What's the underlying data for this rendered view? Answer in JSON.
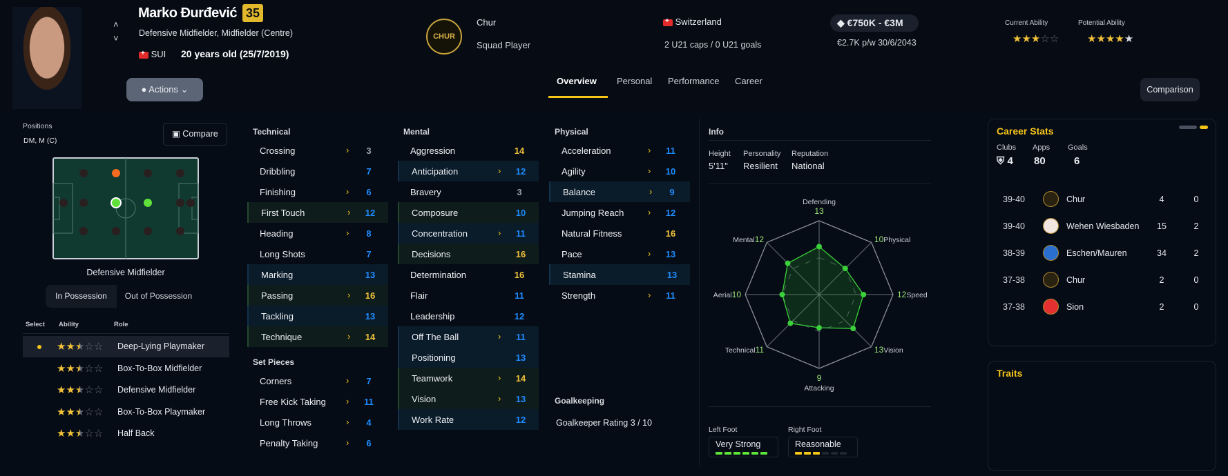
{
  "player": {
    "name": "Marko Đurđević",
    "number": "35",
    "positions_text": "Defensive Midfielder, Midfielder (Centre)",
    "nation_code": "SUI",
    "age_text": "20 years old (25/7/2019)",
    "club": "Chur",
    "club_logo_text": "CHUR",
    "squad_status": "Squad Player",
    "nationality": "Switzerland",
    "caps": "2 U21 caps / 0 U21 goals",
    "value": "€750K - €3M",
    "wage": "€2.7K p/w 30/6/2043",
    "current_ability_label": "Current Ability",
    "potential_ability_label": "Potential Ability",
    "current_ability_stars": 3,
    "potential_ability_stars": 4,
    "potential_ability_range_stars": 5
  },
  "actions_label": "Actions",
  "tabs": [
    "Overview",
    "Personal",
    "Performance",
    "Career"
  ],
  "active_tab": "Overview",
  "comparison_label": "Comparison",
  "positions": {
    "label": "Positions",
    "value": "DM, M (C)",
    "compare_label": "Compare",
    "selected_position": "Defensive Midfielder",
    "possession_tabs": [
      "In Possession",
      "Out of Possession"
    ],
    "headers": [
      "Select",
      "Ability",
      "Role"
    ],
    "roles": [
      {
        "role": "Deep-Lying Playmaker",
        "stars": 2.5,
        "selected": true
      },
      {
        "role": "Box-To-Box Midfielder",
        "stars": 2.5
      },
      {
        "role": "Defensive Midfielder",
        "stars": 2.5
      },
      {
        "role": "Box-To-Box Playmaker",
        "stars": 2.5
      },
      {
        "role": "Half Back",
        "stars": 2.5
      }
    ]
  },
  "attributes": {
    "technical": {
      "title": "Technical",
      "rows": [
        {
          "name": "Crossing",
          "value": 3,
          "arrow": true
        },
        {
          "name": "Dribbling",
          "value": 7
        },
        {
          "name": "Finishing",
          "value": 6,
          "arrow": true
        },
        {
          "name": "First Touch",
          "value": 12,
          "arrow": true,
          "hl": "green"
        },
        {
          "name": "Heading",
          "value": 8,
          "arrow": true
        },
        {
          "name": "Long Shots",
          "value": 7
        },
        {
          "name": "Marking",
          "value": 13,
          "hl": "blue"
        },
        {
          "name": "Passing",
          "value": 16,
          "arrow": true,
          "hl": "green"
        },
        {
          "name": "Tackling",
          "value": 13,
          "hl": "blue"
        },
        {
          "name": "Technique",
          "value": 14,
          "arrow": true,
          "hl": "green"
        }
      ]
    },
    "set_pieces": {
      "title": "Set Pieces",
      "rows": [
        {
          "name": "Corners",
          "value": 7,
          "arrow": true
        },
        {
          "name": "Free Kick Taking",
          "value": 11,
          "arrow": true
        },
        {
          "name": "Long Throws",
          "value": 4,
          "arrow": true
        },
        {
          "name": "Penalty Taking",
          "value": 6,
          "arrow": true
        }
      ]
    },
    "mental": {
      "title": "Mental",
      "rows": [
        {
          "name": "Aggression",
          "value": 14
        },
        {
          "name": "Anticipation",
          "value": 12,
          "arrow": true,
          "hl": "blue"
        },
        {
          "name": "Bravery",
          "value": 3
        },
        {
          "name": "Composure",
          "value": 10,
          "hl": "green"
        },
        {
          "name": "Concentration",
          "value": 11,
          "arrow": true,
          "hl": "blue"
        },
        {
          "name": "Decisions",
          "value": 16,
          "hl": "green"
        },
        {
          "name": "Determination",
          "value": 16
        },
        {
          "name": "Flair",
          "value": 11
        },
        {
          "name": "Leadership",
          "value": 12
        },
        {
          "name": "Off The Ball",
          "value": 11,
          "arrow": true,
          "hl": "blue"
        },
        {
          "name": "Positioning",
          "value": 13,
          "hl": "blue"
        },
        {
          "name": "Teamwork",
          "value": 14,
          "arrow": true,
          "hl": "green"
        },
        {
          "name": "Vision",
          "value": 13,
          "arrow": true,
          "hl": "green"
        },
        {
          "name": "Work Rate",
          "value": 12,
          "hl": "blue"
        }
      ]
    },
    "physical": {
      "title": "Physical",
      "rows": [
        {
          "name": "Acceleration",
          "value": 11,
          "arrow": true
        },
        {
          "name": "Agility",
          "value": 10,
          "arrow": true
        },
        {
          "name": "Balance",
          "value": 9,
          "arrow": true,
          "hl": "blue"
        },
        {
          "name": "Jumping Reach",
          "value": 12,
          "arrow": true
        },
        {
          "name": "Natural Fitness",
          "value": 16
        },
        {
          "name": "Pace",
          "value": 13,
          "arrow": true
        },
        {
          "name": "Stamina",
          "value": 13,
          "hl": "blue"
        },
        {
          "name": "Strength",
          "value": 11,
          "arrow": true
        }
      ]
    },
    "goalkeeping": {
      "title": "Goalkeeping",
      "rating": "Goalkeeper Rating 3 / 10"
    }
  },
  "colors": {
    "high": "#f0c23a",
    "mid": "#1e8cff",
    "low": "#9aa0a8",
    "arrow": "#f0c419",
    "radar": "#3ad13a"
  },
  "info": {
    "title": "Info",
    "height_label": "Height",
    "height": "5'11\"",
    "personality_label": "Personality",
    "personality": "Resilient",
    "reputation_label": "Reputation",
    "reputation": "National",
    "radar": {
      "max": 20,
      "axes": [
        {
          "label": "Defending",
          "value": 13
        },
        {
          "label": "Physical",
          "value": 10
        },
        {
          "label": "Speed",
          "value": 12
        },
        {
          "label": "Vision",
          "value": 13
        },
        {
          "label": "Attacking",
          "value": 9
        },
        {
          "label": "Technical",
          "value": 11
        },
        {
          "label": "Aerial",
          "value": 10
        },
        {
          "label": "Mental",
          "value": 12
        }
      ]
    },
    "left_foot_label": "Left Foot",
    "left_foot": "Very Strong",
    "left_foot_level": 6,
    "right_foot_label": "Right Foot",
    "right_foot": "Reasonable",
    "right_foot_level": 3,
    "foot_level_max": 6
  },
  "career": {
    "title": "Career Stats",
    "clubs_label": "Clubs",
    "clubs": "4",
    "apps_label": "Apps",
    "apps": "80",
    "goals_label": "Goals",
    "goals": "6",
    "rows": [
      {
        "season": "39-40",
        "club": "Chur",
        "apps": "4",
        "goals": "0"
      },
      {
        "season": "39-40",
        "club": "Wehen Wiesbaden",
        "apps": "15",
        "goals": "2"
      },
      {
        "season": "38-39",
        "club": "Eschen/Mauren",
        "apps": "34",
        "goals": "2"
      },
      {
        "season": "37-38",
        "club": "Chur",
        "apps": "2",
        "goals": "0"
      },
      {
        "season": "37-38",
        "club": "Sion",
        "apps": "2",
        "goals": "0"
      }
    ]
  },
  "traits": {
    "title": "Traits"
  }
}
